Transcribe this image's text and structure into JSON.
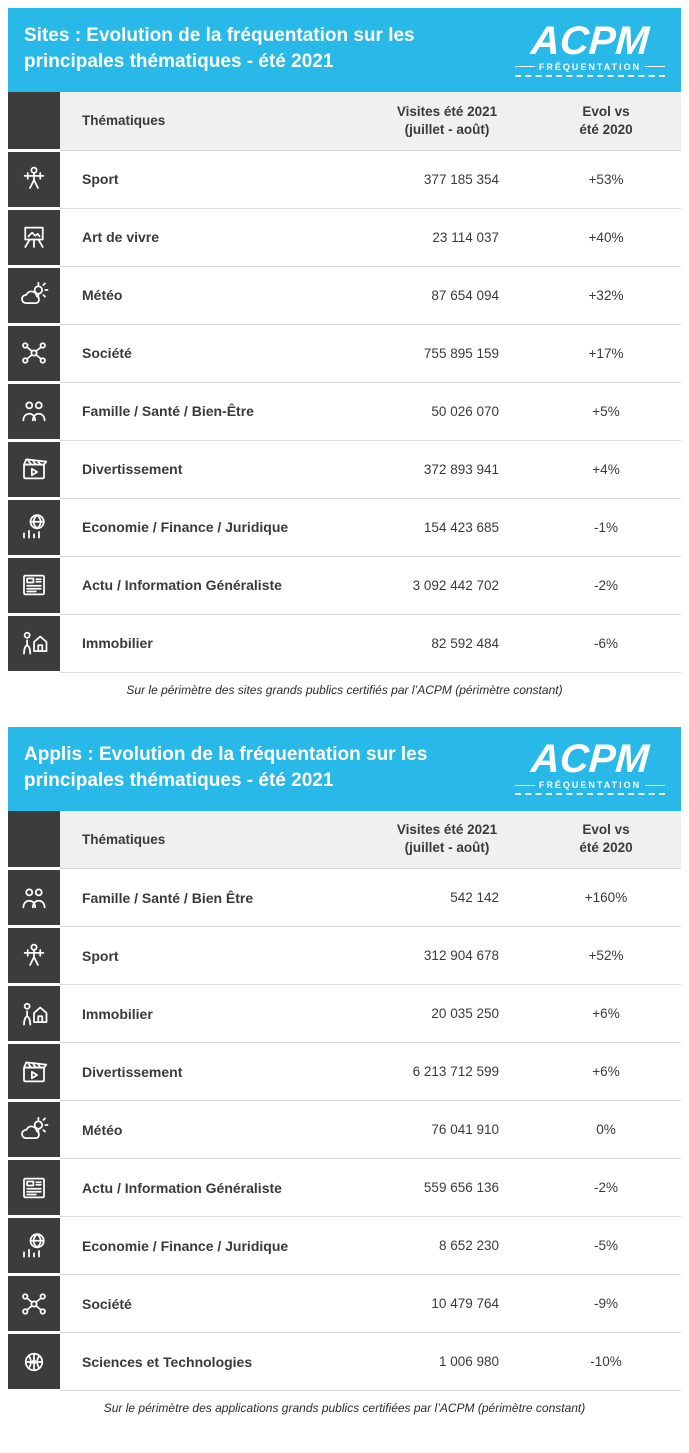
{
  "colors": {
    "accent": "#29b9e8",
    "icon_strip": "#3c3c3c",
    "row_divider": "#dcdcdc"
  },
  "logo": {
    "brand": "ACPM",
    "sub": "FRÉQUENTATION"
  },
  "tables": [
    {
      "title": "Sites : Evolution de la fréquentation sur les principales thématiques - été 2021",
      "header": {
        "theme": "Thématiques",
        "visits": "Visites été 2021\n(juillet - août)",
        "evol": "Evol vs\nété 2020"
      },
      "rows": [
        {
          "icon": "sport-icon",
          "theme": "Sport",
          "visits": "377 185 354",
          "evol": "+53%"
        },
        {
          "icon": "art-de-vivre-icon",
          "theme": "Art de vivre",
          "visits": "23 114 037",
          "evol": "+40%"
        },
        {
          "icon": "meteo-icon",
          "theme": "Météo",
          "visits": "87 654 094",
          "evol": "+32%"
        },
        {
          "icon": "societe-icon",
          "theme": "Société",
          "visits": "755 895 159",
          "evol": "+17%"
        },
        {
          "icon": "famille-icon",
          "theme": "Famille / Santé / Bien-Être",
          "visits": "50 026 070",
          "evol": "+5%"
        },
        {
          "icon": "divertissement-icon",
          "theme": "Divertissement",
          "visits": "372 893 941",
          "evol": "+4%"
        },
        {
          "icon": "economie-icon",
          "theme": "Economie / Finance / Juridique",
          "visits": "154 423 685",
          "evol": "-1%"
        },
        {
          "icon": "actu-icon",
          "theme": "Actu / Information Généraliste",
          "visits": "3 092 442 702",
          "evol": "-2%"
        },
        {
          "icon": "immobilier-icon",
          "theme": "Immobilier",
          "visits": "82 592 484",
          "evol": "-6%"
        }
      ],
      "footnote": "Sur le périmètre des sites grands publics certifiés par l’ACPM (périmètre constant)"
    },
    {
      "title": "Applis : Evolution de la fréquentation sur les principales thématiques - été 2021",
      "header": {
        "theme": "Thématiques",
        "visits": "Visites été 2021\n(juillet - août)",
        "evol": "Evol vs\nété 2020"
      },
      "rows": [
        {
          "icon": "famille-icon",
          "theme": "Famille / Santé / Bien Être",
          "visits": "542 142",
          "evol": "+160%"
        },
        {
          "icon": "sport-icon",
          "theme": "Sport",
          "visits": "312 904 678",
          "evol": "+52%"
        },
        {
          "icon": "immobilier-icon",
          "theme": "Immobilier",
          "visits": "20 035 250",
          "evol": "+6%"
        },
        {
          "icon": "divertissement-icon",
          "theme": "Divertissement",
          "visits": "6 213 712 599",
          "evol": "+6%"
        },
        {
          "icon": "meteo-icon",
          "theme": "Météo",
          "visits": "76 041 910",
          "evol": "0%"
        },
        {
          "icon": "actu-icon",
          "theme": "Actu / Information Généraliste",
          "visits": "559 656 136",
          "evol": "-2%"
        },
        {
          "icon": "economie-icon",
          "theme": "Economie / Finance / Juridique",
          "visits": "8 652 230",
          "evol": "-5%"
        },
        {
          "icon": "societe-icon",
          "theme": "Société",
          "visits": "10 479 764",
          "evol": "-9%"
        },
        {
          "icon": "sciences-icon",
          "theme": "Sciences et Technologies",
          "visits": "1 006 980",
          "evol": "-10%"
        }
      ],
      "footnote": "Sur le périmètre des applications grands publics certifiées par l’ACPM (périmètre constant)"
    }
  ],
  "chart_data": [
    {
      "type": "table",
      "title": "Sites : Evolution de la fréquentation sur les principales thématiques - été 2021",
      "columns": [
        "Thématiques",
        "Visites été 2021 (juillet - août)",
        "Evol vs été 2020"
      ],
      "rows": [
        [
          "Sport",
          377185354,
          "+53%"
        ],
        [
          "Art de vivre",
          23114037,
          "+40%"
        ],
        [
          "Météo",
          87654094,
          "+32%"
        ],
        [
          "Société",
          755895159,
          "+17%"
        ],
        [
          "Famille / Santé / Bien-Être",
          50026070,
          "+5%"
        ],
        [
          "Divertissement",
          372893941,
          "+4%"
        ],
        [
          "Economie / Finance / Juridique",
          154423685,
          "-1%"
        ],
        [
          "Actu / Information Généraliste",
          3092442702,
          "-2%"
        ],
        [
          "Immobilier",
          82592484,
          "-6%"
        ]
      ]
    },
    {
      "type": "table",
      "title": "Applis : Evolution de la fréquentation sur les principales thématiques - été 2021",
      "columns": [
        "Thématiques",
        "Visites été 2021 (juillet - août)",
        "Evol vs été 2020"
      ],
      "rows": [
        [
          "Famille / Santé / Bien Être",
          542142,
          "+160%"
        ],
        [
          "Sport",
          312904678,
          "+52%"
        ],
        [
          "Immobilier",
          20035250,
          "+6%"
        ],
        [
          "Divertissement",
          6213712599,
          "+6%"
        ],
        [
          "Météo",
          76041910,
          "0%"
        ],
        [
          "Actu / Information Généraliste",
          559656136,
          "-2%"
        ],
        [
          "Economie / Finance / Juridique",
          8652230,
          "-5%"
        ],
        [
          "Société",
          10479764,
          "-9%"
        ],
        [
          "Sciences et Technologies",
          1006980,
          "-10%"
        ]
      ]
    }
  ]
}
